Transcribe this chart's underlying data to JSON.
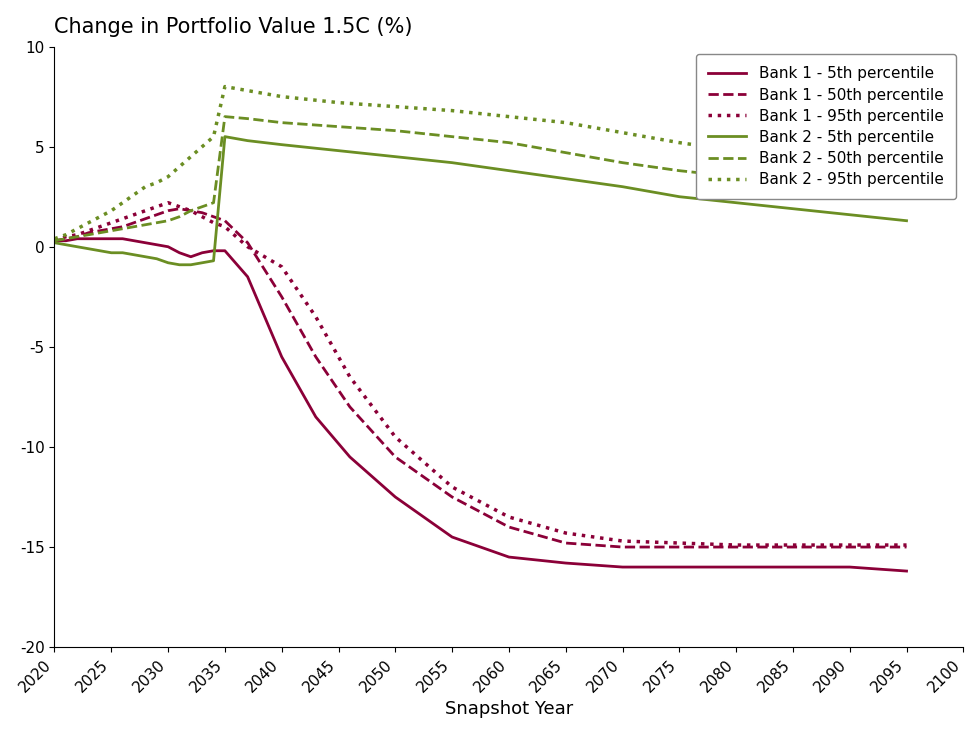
{
  "title": "Change in Portfolio Value 1.5C (%)",
  "xlabel": "Snapshot Year",
  "ylabel": "",
  "ylim": [
    -20,
    10
  ],
  "xlim": [
    2020,
    2100
  ],
  "xticks": [
    2020,
    2025,
    2030,
    2035,
    2040,
    2045,
    2050,
    2055,
    2060,
    2065,
    2070,
    2075,
    2080,
    2085,
    2090,
    2095,
    2100
  ],
  "yticks": [
    -20,
    -15,
    -10,
    -5,
    0,
    5,
    10
  ],
  "bank1_color": "#8B0038",
  "bank2_color": "#6B8E23",
  "series": {
    "bank1_5th": {
      "x": [
        2020,
        2021,
        2022,
        2023,
        2024,
        2025,
        2026,
        2027,
        2028,
        2029,
        2030,
        2031,
        2032,
        2033,
        2034,
        2035,
        2037,
        2040,
        2043,
        2046,
        2050,
        2055,
        2060,
        2065,
        2070,
        2075,
        2080,
        2085,
        2090,
        2095
      ],
      "y": [
        0.3,
        0.3,
        0.4,
        0.4,
        0.4,
        0.4,
        0.4,
        0.3,
        0.2,
        0.1,
        0.0,
        -0.3,
        -0.5,
        -0.3,
        -0.2,
        -0.2,
        -1.5,
        -5.5,
        -8.5,
        -10.5,
        -12.5,
        -14.5,
        -15.5,
        -15.8,
        -16.0,
        -16.0,
        -16.0,
        -16.0,
        -16.0,
        -16.2
      ],
      "linestyle": "solid",
      "label": "Bank 1 - 5th percentile"
    },
    "bank1_50th": {
      "x": [
        2020,
        2021,
        2022,
        2023,
        2024,
        2025,
        2026,
        2027,
        2028,
        2029,
        2030,
        2031,
        2032,
        2033,
        2034,
        2035,
        2037,
        2040,
        2043,
        2046,
        2050,
        2055,
        2060,
        2065,
        2070,
        2075,
        2080,
        2085,
        2090,
        2095
      ],
      "y": [
        0.3,
        0.4,
        0.5,
        0.7,
        0.8,
        0.9,
        1.0,
        1.2,
        1.4,
        1.6,
        1.8,
        1.9,
        1.8,
        1.7,
        1.5,
        1.3,
        0.2,
        -2.5,
        -5.5,
        -8.0,
        -10.5,
        -12.5,
        -14.0,
        -14.8,
        -15.0,
        -15.0,
        -15.0,
        -15.0,
        -15.0,
        -15.0
      ],
      "linestyle": "dashed",
      "label": "Bank 1 - 50th percentile"
    },
    "bank1_95th": {
      "x": [
        2020,
        2021,
        2022,
        2023,
        2024,
        2025,
        2026,
        2027,
        2028,
        2029,
        2030,
        2031,
        2032,
        2033,
        2034,
        2035,
        2037,
        2040,
        2043,
        2046,
        2050,
        2055,
        2060,
        2065,
        2070,
        2075,
        2080,
        2085,
        2090,
        2095
      ],
      "y": [
        0.3,
        0.5,
        0.6,
        0.8,
        1.0,
        1.2,
        1.4,
        1.6,
        1.8,
        2.0,
        2.2,
        2.0,
        1.8,
        1.5,
        1.2,
        1.0,
        0.0,
        -1.0,
        -3.5,
        -6.5,
        -9.5,
        -12.0,
        -13.5,
        -14.3,
        -14.7,
        -14.8,
        -14.9,
        -14.9,
        -14.9,
        -14.9
      ],
      "linestyle": "dotted",
      "label": "Bank 1 - 95th percentile"
    },
    "bank2_5th": {
      "x": [
        2020,
        2021,
        2022,
        2023,
        2024,
        2025,
        2026,
        2027,
        2028,
        2029,
        2030,
        2031,
        2032,
        2033,
        2034,
        2035,
        2037,
        2040,
        2045,
        2050,
        2055,
        2060,
        2065,
        2070,
        2075,
        2080,
        2085,
        2090,
        2095
      ],
      "y": [
        0.2,
        0.1,
        0.0,
        -0.1,
        -0.2,
        -0.3,
        -0.3,
        -0.4,
        -0.5,
        -0.6,
        -0.8,
        -0.9,
        -0.9,
        -0.8,
        -0.7,
        5.5,
        5.3,
        5.1,
        4.8,
        4.5,
        4.2,
        3.8,
        3.4,
        3.0,
        2.5,
        2.2,
        1.9,
        1.6,
        1.3
      ],
      "linestyle": "solid",
      "label": "Bank 2 - 5th percentile"
    },
    "bank2_50th": {
      "x": [
        2020,
        2021,
        2022,
        2023,
        2024,
        2025,
        2026,
        2027,
        2028,
        2029,
        2030,
        2031,
        2032,
        2033,
        2034,
        2035,
        2037,
        2040,
        2045,
        2050,
        2055,
        2060,
        2065,
        2070,
        2075,
        2080,
        2085,
        2090,
        2095
      ],
      "y": [
        0.3,
        0.4,
        0.5,
        0.6,
        0.7,
        0.8,
        0.9,
        1.0,
        1.1,
        1.2,
        1.3,
        1.5,
        1.8,
        2.0,
        2.2,
        6.5,
        6.4,
        6.2,
        6.0,
        5.8,
        5.5,
        5.2,
        4.7,
        4.2,
        3.8,
        3.5,
        3.2,
        3.0,
        2.8
      ],
      "linestyle": "dashed",
      "label": "Bank 2 - 50th percentile"
    },
    "bank2_95th": {
      "x": [
        2020,
        2021,
        2022,
        2023,
        2024,
        2025,
        2026,
        2027,
        2028,
        2029,
        2030,
        2031,
        2032,
        2033,
        2034,
        2035,
        2037,
        2040,
        2045,
        2050,
        2055,
        2060,
        2065,
        2070,
        2075,
        2080,
        2085,
        2090,
        2095
      ],
      "y": [
        0.4,
        0.6,
        0.9,
        1.2,
        1.5,
        1.8,
        2.2,
        2.6,
        3.0,
        3.2,
        3.5,
        4.0,
        4.5,
        5.0,
        5.5,
        8.0,
        7.8,
        7.5,
        7.2,
        7.0,
        6.8,
        6.5,
        6.2,
        5.7,
        5.2,
        4.8,
        4.5,
        4.2,
        3.9
      ],
      "linestyle": "dotted",
      "label": "Bank 2 - 95th percentile"
    }
  },
  "linewidth": 2.0,
  "title_fontsize": 15,
  "label_fontsize": 13,
  "tick_fontsize": 11,
  "legend_fontsize": 11
}
